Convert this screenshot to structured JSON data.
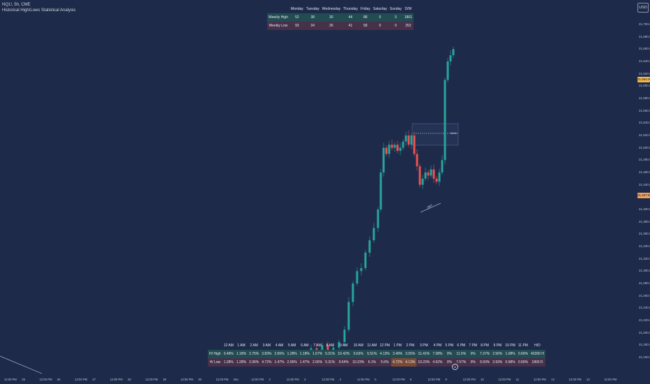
{
  "header": {
    "symbol_line": "NQ1!, 5h, CME",
    "indicator_name": "Historical High/Lows Statistical Analysis",
    "currency": "USD"
  },
  "colors": {
    "background": "#1e2a4a",
    "bull": "#26a69a",
    "bear": "#ef5350",
    "last_price_tag": "#f5b547",
    "current_tag": "#f0a060",
    "green_row": "#234b52",
    "red_row": "#47304a"
  },
  "price_tags": {
    "current": "21,654.00",
    "secondary": "21,427.50"
  },
  "weekly_table": {
    "headers": [
      "",
      "Monday",
      "Tuesday",
      "Wednesday",
      "Thursday",
      "Friday",
      "Saturday",
      "Sunday",
      "D/W"
    ],
    "rows": [
      [
        "Weekly High",
        "52",
        "38",
        "30",
        "44",
        "88",
        "0",
        "0",
        "1801"
      ],
      [
        "Weekly Low",
        "93",
        "34",
        "26",
        "41",
        "58",
        "0",
        "0",
        "252"
      ]
    ]
  },
  "hourly_table": {
    "headers": [
      "",
      "12 AM",
      "1 AM",
      "2 AM",
      "3 AM",
      "4 AM",
      "5 AM",
      "6 AM",
      "7 AM",
      "8 AM",
      "9 AM",
      "10 AM",
      "11 AM",
      "12 PM",
      "1 PM",
      "2 PM",
      "3 PM",
      "4 PM",
      "5 PM",
      "6 PM",
      "7 PM",
      "8 PM",
      "9 PM",
      "10 PM",
      "11 PM",
      "H/D"
    ],
    "rows": [
      [
        "H/ High",
        "0.49%",
        "1.18%",
        "2.75%",
        "3.83%",
        "2.65%",
        "1.28%",
        "1.18%",
        "1.67%",
        "5.01%",
        "10.42%",
        "9.63%",
        "5.51%",
        "4.13%",
        "3.49%",
        "3.05%",
        "11.41%",
        "7.08%",
        "0%",
        "11.5%",
        "0%",
        "7.37%",
        "2.56%",
        "1.08%",
        "0.69%",
        "43200 H"
      ],
      [
        "H/ Low",
        "1.28%",
        "1.28%",
        "2.06%",
        "4.72%",
        "1.47%",
        "2.06%",
        "1.47%",
        "2.06%",
        "5.31%",
        "9.64%",
        "10.23%",
        "6.1%",
        "5.6%",
        "4.72%",
        "4.13%",
        "10.23%",
        "4.62%",
        "0%",
        "7.57%",
        "0%",
        "9.93%",
        "3.93%",
        "0.98%",
        "0.69%",
        "1800 D"
      ]
    ]
  },
  "chart_data": {
    "type": "candlestick",
    "symbol": "NQ1!",
    "interval": "5h",
    "y_axis_ticks": [
      21700,
      21680,
      21660,
      21640,
      21620,
      21600,
      21580,
      21560,
      21540,
      21520,
      21500,
      21480,
      21460,
      21440,
      21420,
      21400,
      21380,
      21360,
      21340,
      21320,
      21300,
      21280,
      21260,
      21240,
      21220,
      21200,
      21180,
      21160
    ],
    "y_axis_labels": [
      "21,700.00",
      "21,680.00",
      "21,660.00",
      "21,640.00",
      "21,620.00",
      "21,600.00",
      "21,580.00",
      "21,560.00",
      "21,540.00",
      "21,520.00",
      "21,500.00",
      "21,480.00",
      "21,460.00",
      "21,440.00",
      "21,420.00",
      "21,400.00",
      "21,380.00",
      "21,360.00",
      "21,340.00",
      "21,320.00",
      "21,300.00",
      "21,280.00",
      "21,260.00",
      "21,240.00",
      "21,220.00",
      "21,200.00",
      "21,180.00",
      "21,160.00"
    ],
    "x_axis_labels": [
      "12:00 PM",
      "25",
      "12:00 PM",
      "26",
      "12:00 PM",
      "27",
      "12:00 PM",
      "28",
      "12:00 PM",
      "29",
      "12:00 PM",
      "30",
      "12:00 PM",
      "Dec",
      "12:00 PM",
      "2",
      "12:00 PM",
      "3",
      "12:00 PM",
      "4",
      "12:00 PM",
      "5",
      "12:00 PM",
      "6",
      "12:00 PM",
      "9",
      "12:00 PM",
      "10",
      "12:00 PM",
      "11",
      "12:00 PM",
      "12",
      "12:00 PM",
      "13",
      "12:00 PM"
    ],
    "ylim": [
      21156,
      21710
    ],
    "marks": {
      "rect_label": "bbbb",
      "trend_label": "SMT"
    }
  }
}
